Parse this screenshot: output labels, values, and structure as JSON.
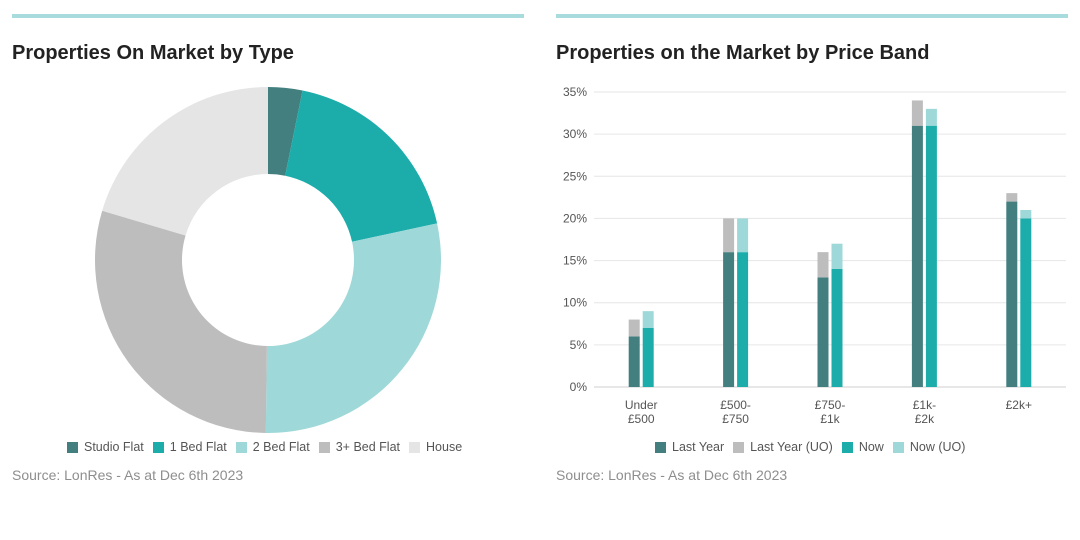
{
  "colors": {
    "rule": "#a8dcdc",
    "studio": "#437f7f",
    "one_bed": "#1cadab",
    "two_bed": "#9ed8d8",
    "three_bed": "#bdbdbd",
    "house": "#e5e5e5",
    "last_year": "#437f7f",
    "last_year_uo": "#bdbdbd",
    "now": "#1cadab",
    "now_uo": "#9ed8d8",
    "grid": "#e6e6e6",
    "axis": "#cfcfcf"
  },
  "left": {
    "title": "Properties On Market by Type",
    "source": "Source: LonRes - As at Dec 6th 2023"
  },
  "right": {
    "title": "Properties on the Market by Price Band",
    "source": "Source: LonRes - As at Dec 6th 2023"
  },
  "chart_data": [
    {
      "type": "pie",
      "variant": "donut",
      "title": "Properties On Market by Type",
      "legend_position": "bottom",
      "slices": [
        {
          "label": "Studio Flat",
          "value": 3.2,
          "color_key": "studio"
        },
        {
          "label": "1 Bed Flat",
          "value": 18.4,
          "color_key": "one_bed"
        },
        {
          "label": "2 Bed Flat",
          "value": 28.6,
          "color_key": "two_bed"
        },
        {
          "label": "3+ Bed Flat",
          "value": 29.4,
          "color_key": "three_bed"
        },
        {
          "label": "House",
          "value": 20.4,
          "color_key": "house"
        }
      ]
    },
    {
      "type": "bar",
      "variant": "stacked-grouped",
      "title": "Properties on the Market by Price Band",
      "categories": [
        [
          "Under",
          "£500"
        ],
        [
          "£500-",
          "£750"
        ],
        [
          "£750-",
          "£1k"
        ],
        [
          "£1k-",
          "£2k"
        ],
        [
          "£2k+"
        ]
      ],
      "y_ticks": [
        "0%",
        "5%",
        "10%",
        "15%",
        "20%",
        "25%",
        "30%",
        "35%"
      ],
      "ylim": [
        0,
        35
      ],
      "grid": true,
      "legend_position": "bottom",
      "legend": [
        {
          "label": "Last Year",
          "color_key": "last_year"
        },
        {
          "label": "Last Year (UO)",
          "color_key": "last_year_uo"
        },
        {
          "label": "Now",
          "color_key": "now"
        },
        {
          "label": "Now (UO)",
          "color_key": "now_uo"
        }
      ],
      "groups": [
        {
          "name": "Last Year",
          "stack": [
            {
              "series": "Last Year",
              "values": [
                6,
                16,
                13,
                31,
                22
              ],
              "color_key": "last_year"
            },
            {
              "series": "Last Year (UO)",
              "values": [
                2,
                4,
                3,
                3,
                1
              ],
              "color_key": "last_year_uo"
            }
          ]
        },
        {
          "name": "Now",
          "stack": [
            {
              "series": "Now",
              "values": [
                7,
                16,
                14,
                31,
                20
              ],
              "color_key": "now"
            },
            {
              "series": "Now (UO)",
              "values": [
                2,
                4,
                3,
                2,
                1
              ],
              "color_key": "now_uo"
            }
          ]
        }
      ]
    }
  ]
}
